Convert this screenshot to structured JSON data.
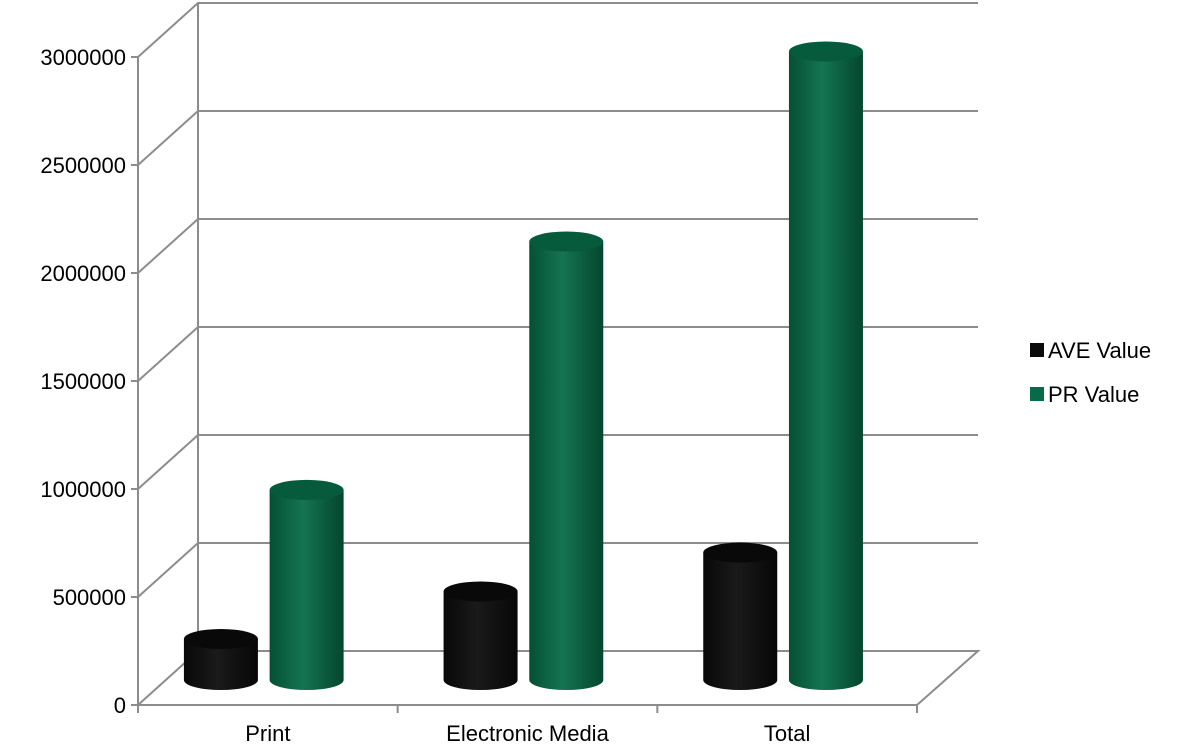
{
  "chart_data": {
    "type": "bar",
    "style": "3d-cylinder",
    "categories": [
      "Print",
      "Electronic Media",
      "Total"
    ],
    "series": [
      {
        "name": "AVE Value",
        "values": [
          190000,
          410000,
          590000
        ],
        "color": "#0b0b0b"
      },
      {
        "name": "PR Value",
        "values": [
          880000,
          2030000,
          2910000
        ],
        "color": "#066b47"
      }
    ],
    "ylim": [
      0,
      3000000
    ],
    "yticks": [
      0,
      500000,
      1000000,
      1500000,
      2000000,
      2500000,
      3000000
    ],
    "ytick_labels": [
      "0",
      "500000",
      "1000000",
      "1500000",
      "2000000",
      "2500000",
      "3000000"
    ],
    "title": "",
    "xlabel": "",
    "ylabel": "",
    "grid": true,
    "legend_position": "right"
  }
}
